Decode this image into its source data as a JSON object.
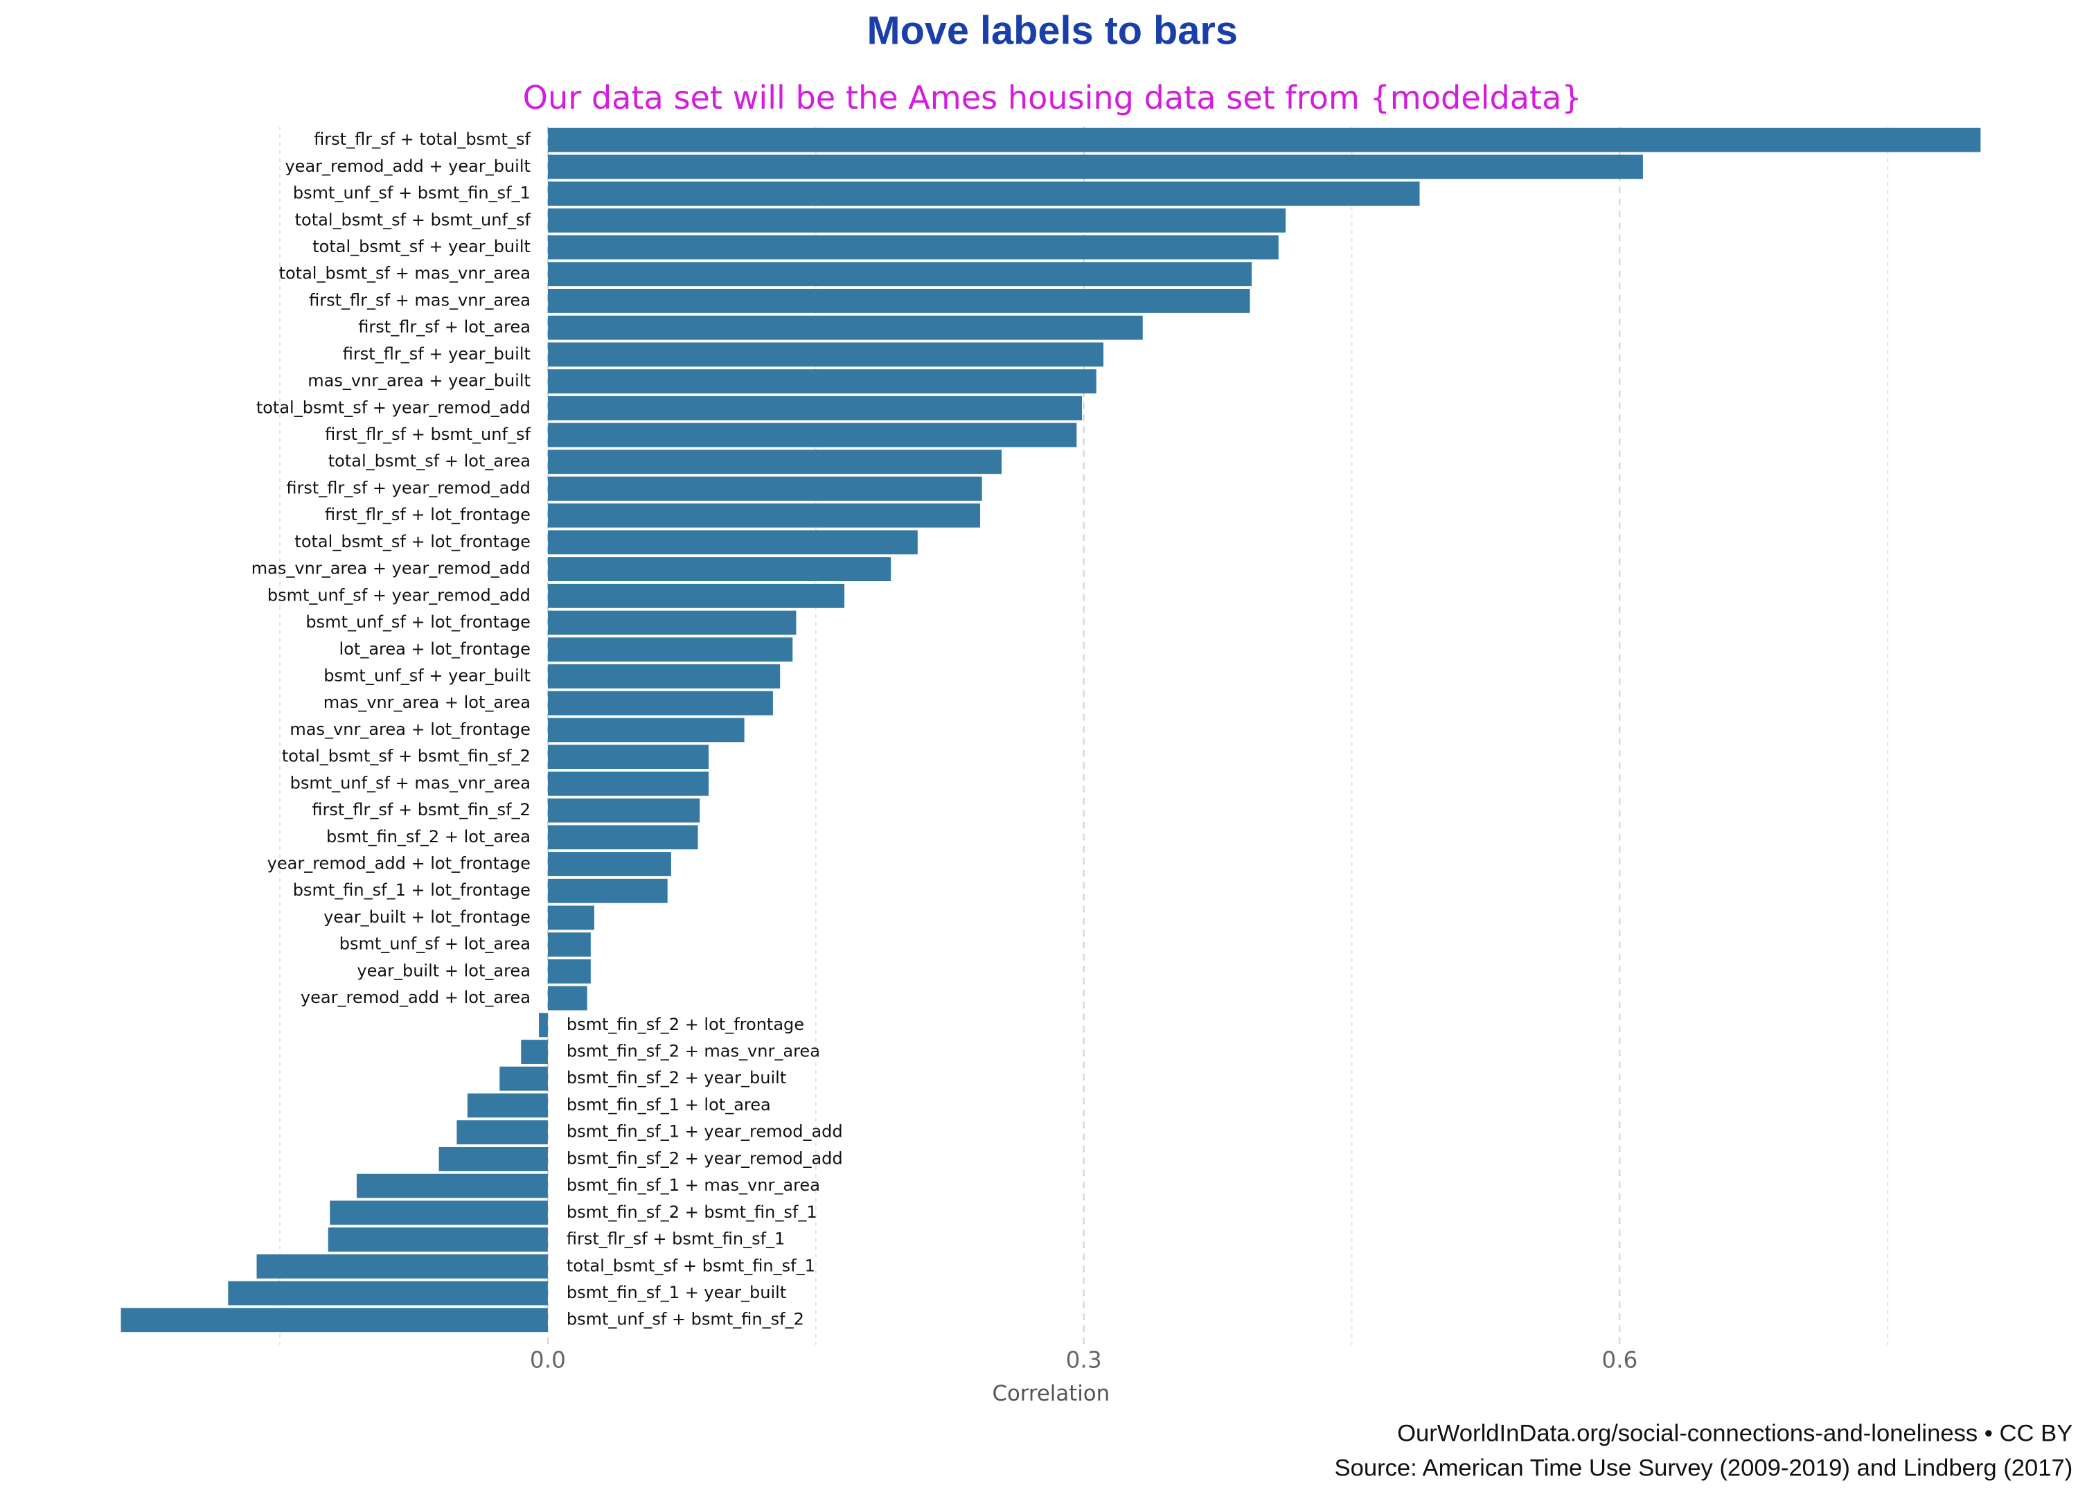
{
  "chart_data": {
    "type": "bar",
    "orientation": "horizontal",
    "title": "Move labels to bars",
    "subtitle": "Our data set will be the Ames housing data set from {modeldata}",
    "x_label": "Correlation",
    "footer": [
      "OurWorldInData.org/social-connections-and-loneliness  •  CC BY",
      "Source: American Time Use Survey (2009-2019) and Lindberg (2017)"
    ],
    "color": "#3579a3",
    "categories": [
      "first_flr_sf + total_bsmt_sf",
      "year_remod_add + year_built",
      "bsmt_unf_sf + bsmt_fin_sf_1",
      "total_bsmt_sf + bsmt_unf_sf",
      "total_bsmt_sf + year_built",
      "total_bsmt_sf + mas_vnr_area",
      "first_flr_sf + mas_vnr_area",
      "first_flr_sf + lot_area",
      "first_flr_sf + year_built",
      "mas_vnr_area + year_built",
      "total_bsmt_sf + year_remod_add",
      "first_flr_sf + bsmt_unf_sf",
      "total_bsmt_sf + lot_area",
      "first_flr_sf + year_remod_add",
      "first_flr_sf + lot_frontage",
      "total_bsmt_sf + lot_frontage",
      "mas_vnr_area + year_remod_add",
      "bsmt_unf_sf + year_remod_add",
      "bsmt_unf_sf + lot_frontage",
      "lot_area + lot_frontage",
      "bsmt_unf_sf + year_built",
      "mas_vnr_area + lot_area",
      "mas_vnr_area + lot_frontage",
      "total_bsmt_sf + bsmt_fin_sf_2",
      "bsmt_unf_sf + mas_vnr_area",
      "first_flr_sf + bsmt_fin_sf_2",
      "bsmt_fin_sf_2 + lot_area",
      "year_remod_add + lot_frontage",
      "bsmt_fin_sf_1 + lot_frontage",
      "year_built + lot_frontage",
      "bsmt_unf_sf + lot_area",
      "year_built + lot_area",
      "year_remod_add + lot_area",
      "bsmt_fin_sf_2 + lot_frontage",
      "bsmt_fin_sf_2 + mas_vnr_area",
      "bsmt_fin_sf_2 + year_built",
      "bsmt_fin_sf_1 + lot_area",
      "bsmt_fin_sf_1 + year_remod_add",
      "bsmt_fin_sf_2 + year_remod_add",
      "bsmt_fin_sf_1 + mas_vnr_area",
      "bsmt_fin_sf_2 + bsmt_fin_sf_1",
      "first_flr_sf + bsmt_fin_sf_1",
      "total_bsmt_sf + bsmt_fin_sf_1",
      "bsmt_fin_sf_1 + year_built",
      "bsmt_unf_sf + bsmt_fin_sf_2"
    ],
    "values": [
      0.802,
      0.613,
      0.488,
      0.413,
      0.409,
      0.394,
      0.393,
      0.333,
      0.311,
      0.307,
      0.299,
      0.296,
      0.254,
      0.243,
      0.242,
      0.207,
      0.192,
      0.166,
      0.139,
      0.137,
      0.13,
      0.126,
      0.11,
      0.09,
      0.09,
      0.085,
      0.084,
      0.069,
      0.067,
      0.026,
      0.024,
      0.024,
      0.022,
      -0.005,
      -0.015,
      -0.027,
      -0.045,
      -0.051,
      -0.061,
      -0.107,
      -0.122,
      -0.123,
      -0.163,
      -0.179,
      -0.239
    ],
    "xlim": [
      -0.25,
      0.82
    ],
    "xticks": [
      {
        "value": 0,
        "label": "0.0"
      },
      0.3,
      0.6
    ],
    "minor_grid": [
      -0.15,
      0.15,
      0.45,
      0.75
    ],
    "grid": true
  }
}
